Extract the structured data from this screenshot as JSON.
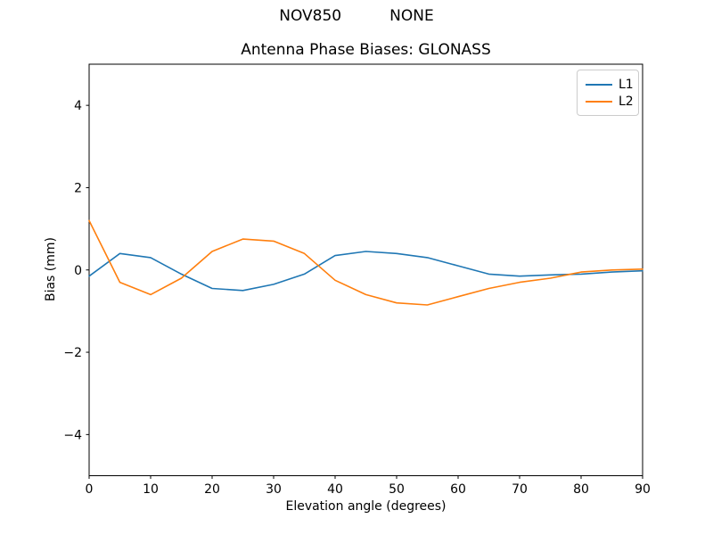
{
  "chart_data": {
    "type": "line",
    "suptitle": "NOV850          NONE",
    "title": "Antenna Phase Biases: GLONASS",
    "xlabel": "Elevation angle (degrees)",
    "ylabel": "Bias (mm)",
    "xlim": [
      0,
      90
    ],
    "ylim": [
      -5,
      5
    ],
    "xticks": [
      0,
      10,
      20,
      30,
      40,
      50,
      60,
      70,
      80,
      90
    ],
    "yticks": [
      -4,
      -2,
      0,
      2,
      4
    ],
    "grid": false,
    "legend_position": "top-right",
    "x": [
      0,
      5,
      10,
      15,
      20,
      25,
      30,
      35,
      40,
      45,
      50,
      55,
      60,
      65,
      70,
      75,
      80,
      85,
      90
    ],
    "series": [
      {
        "name": "L1",
        "color": "#1f77b4",
        "values": [
          -0.15,
          0.4,
          0.3,
          -0.1,
          -0.45,
          -0.5,
          -0.35,
          -0.1,
          0.35,
          0.45,
          0.4,
          0.3,
          0.1,
          -0.1,
          -0.15,
          -0.12,
          -0.1,
          -0.05,
          -0.02
        ]
      },
      {
        "name": "L2",
        "color": "#ff7f0e",
        "values": [
          1.2,
          -0.3,
          -0.6,
          -0.2,
          0.45,
          0.75,
          0.7,
          0.4,
          -0.25,
          -0.6,
          -0.8,
          -0.85,
          -0.65,
          -0.45,
          -0.3,
          -0.2,
          -0.05,
          0.0,
          0.02
        ]
      }
    ]
  }
}
